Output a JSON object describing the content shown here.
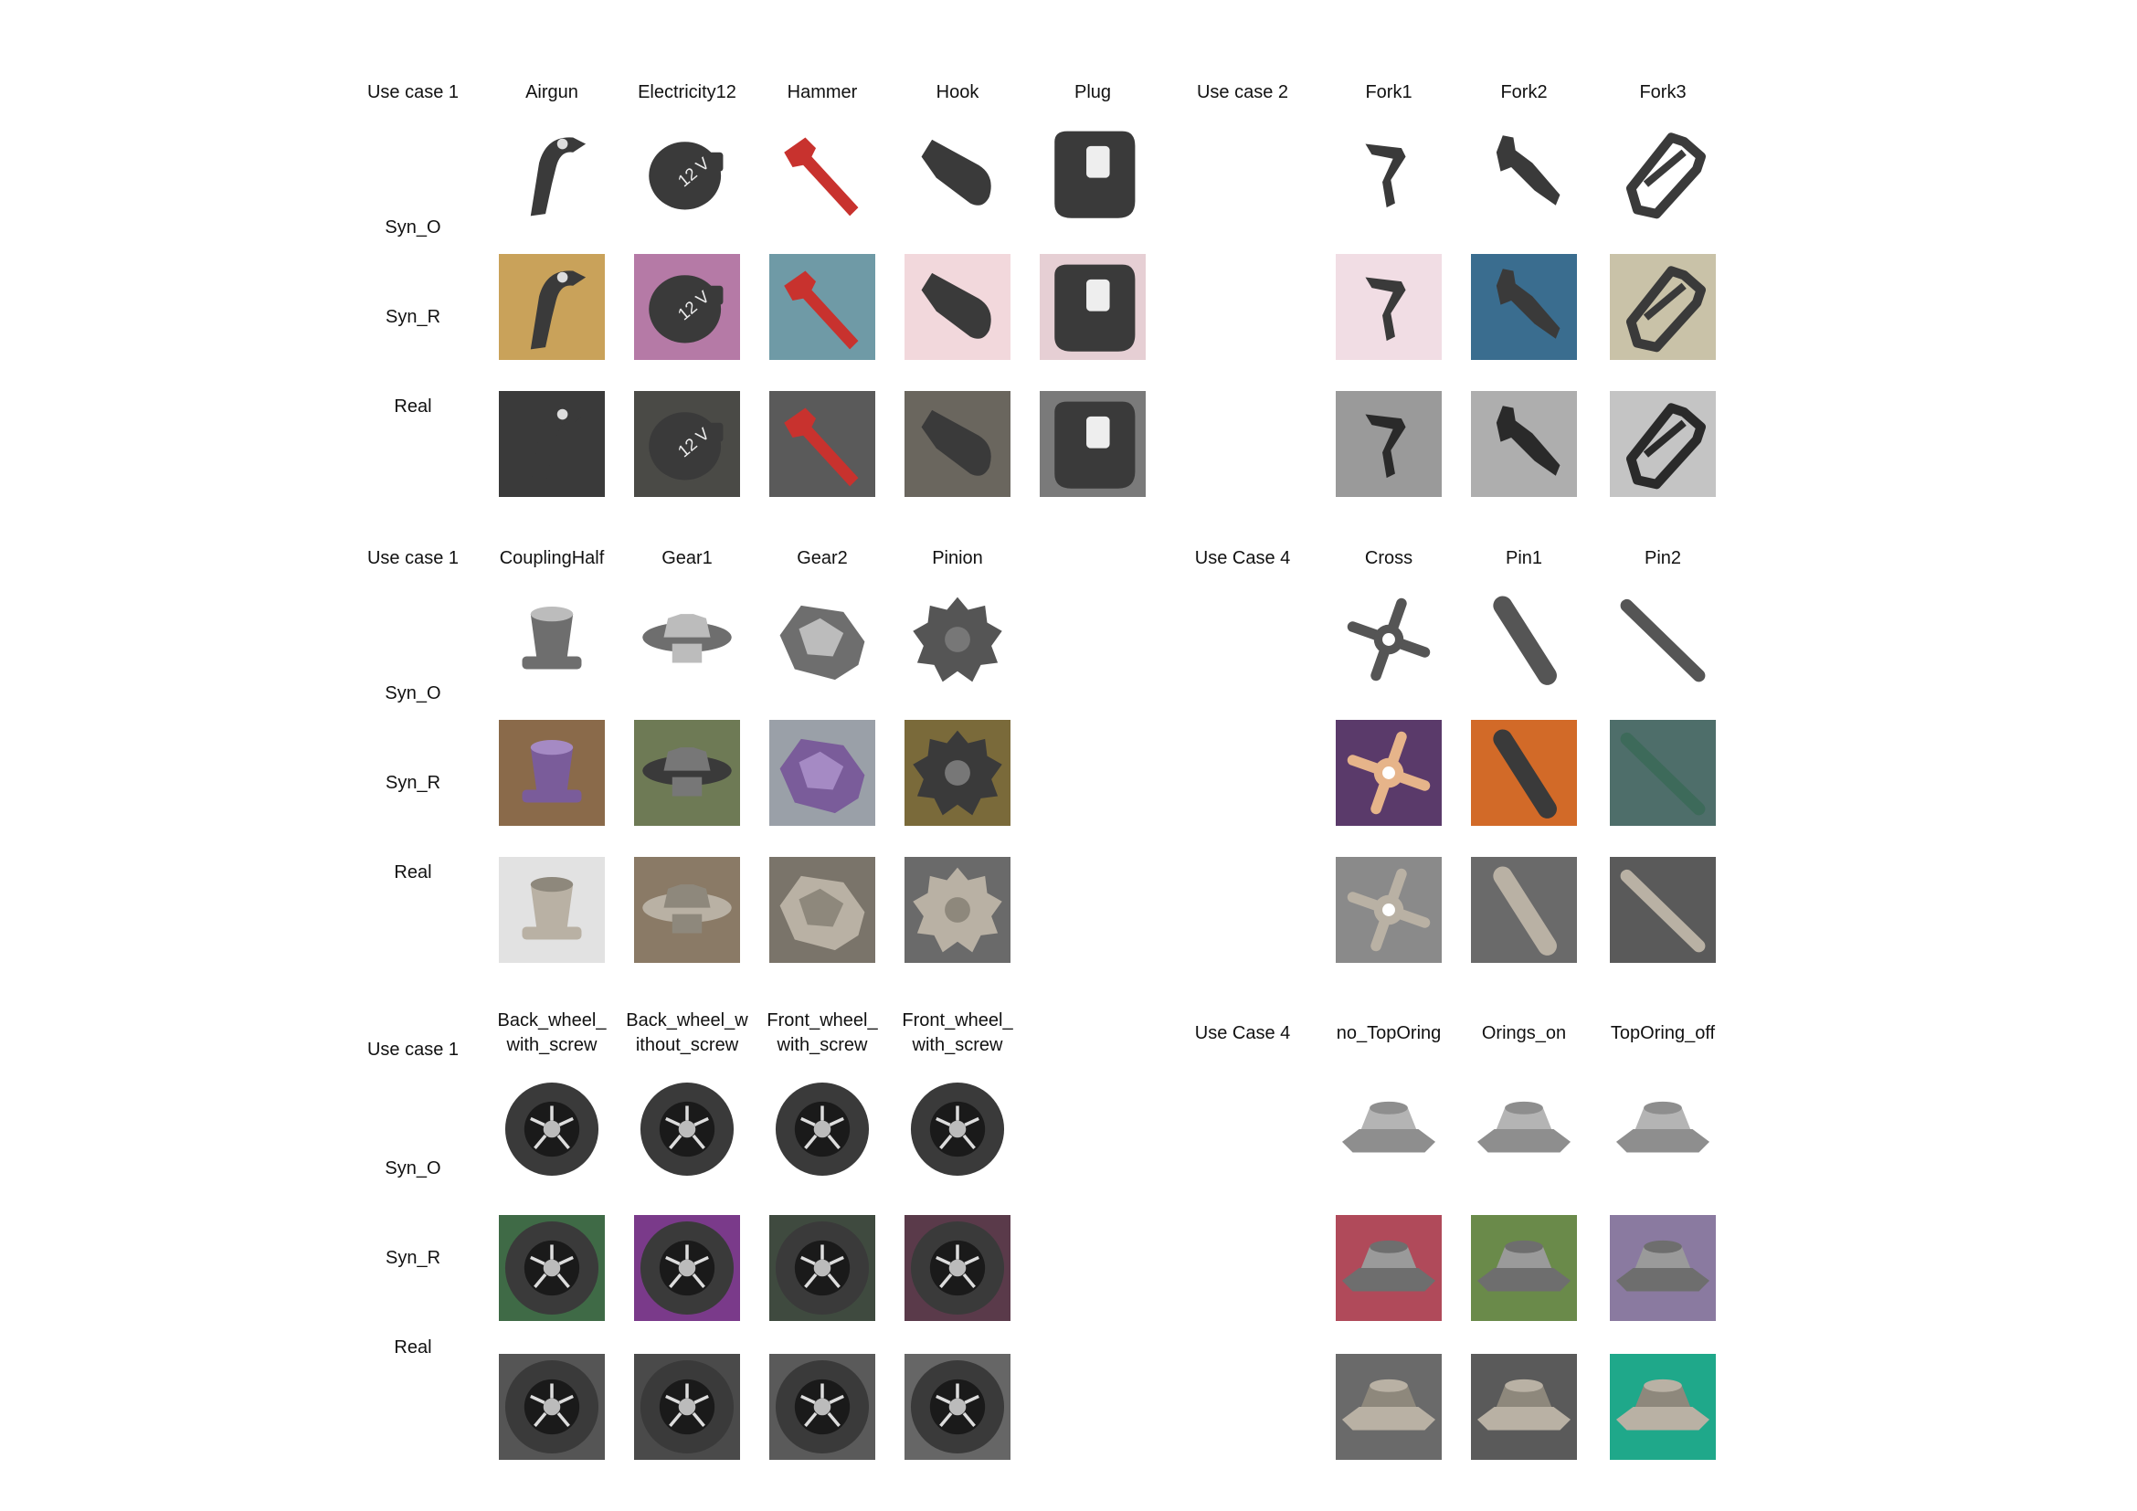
{
  "figure": {
    "panels": [
      {
        "case_label": "Use case 1",
        "objects": [
          {
            "label": "Airgun",
            "shape": "airgun"
          },
          {
            "label": "Electricity12",
            "shape": "socket",
            "glyph": "12 V"
          },
          {
            "label": "Hammer",
            "shape": "hammer"
          },
          {
            "label": "Hook",
            "shape": "hook"
          },
          {
            "label": "Plug",
            "shape": "plug"
          }
        ],
        "rows": [
          "Syn_O",
          "Syn_R",
          "Real"
        ]
      },
      {
        "case_label": "Use case 2",
        "objects": [
          {
            "label": "Fork1",
            "shape": "fork1"
          },
          {
            "label": "Fork2",
            "shape": "fork2"
          },
          {
            "label": "Fork3",
            "shape": "fork3"
          }
        ],
        "rows": []
      },
      {
        "case_label": "Use case 1",
        "objects": [
          {
            "label": "CouplingHalf",
            "shape": "coupling"
          },
          {
            "label": "Gear1",
            "shape": "gear1"
          },
          {
            "label": "Gear2",
            "shape": "gear2"
          },
          {
            "label": "Pinion",
            "shape": "pinion"
          }
        ],
        "rows": [
          "Syn_O",
          "Syn_R",
          "Real"
        ]
      },
      {
        "case_label": "Use Case 4",
        "objects": [
          {
            "label": "Cross",
            "shape": "cross"
          },
          {
            "label": "Pin1",
            "shape": "pin1"
          },
          {
            "label": "Pin2",
            "shape": "pin2"
          }
        ],
        "rows": []
      },
      {
        "case_label": "Use case 1",
        "objects": [
          {
            "label": "Back_wheel_\nwith_screw",
            "shape": "wheel"
          },
          {
            "label": "Back_wheel_w\nithout_screw",
            "shape": "wheel"
          },
          {
            "label": "Front_wheel_\nwith_screw",
            "shape": "wheel"
          },
          {
            "label": "Front_wheel_\nwith_screw",
            "shape": "wheel"
          }
        ],
        "rows": [
          "Syn_O",
          "Syn_R",
          "Real"
        ]
      },
      {
        "case_label": "Use Case 4",
        "objects": [
          {
            "label": "no_TopOring",
            "shape": "housing"
          },
          {
            "label": "Orings_on",
            "shape": "housing"
          },
          {
            "label": "TopOring_off",
            "shape": "housing"
          }
        ],
        "rows": []
      }
    ],
    "backgrounds": {
      "syn_r": [
        "#c9a25a",
        "#b57aa6",
        "#6f9aa6",
        "#f2d8dc",
        "#e6cfd4",
        "#f1dde4",
        "#3a6d8f",
        "#c9c2a8",
        "#8a6a4a",
        "#6e7a55",
        "#9aa0a8",
        "#7a6a3a",
        "#5a3a6a",
        "#d26a28",
        "#4e6e6a",
        "#3f6a46",
        "#7a3a8a",
        "#3f4a3f",
        "#5a3a4a",
        "#b04a5a",
        "#6a8a4a",
        "#8a7aa0"
      ],
      "real": [
        "#3a3a3a",
        "#4a4a46",
        "#5a5a5a",
        "#6a665e",
        "#7a7a7a",
        "#9a9a9a",
        "#aeaeae",
        "#c4c4c4",
        "#e2e2e2",
        "#8a7a66",
        "#7a746a",
        "#6a6a6a",
        "#8a8a8a",
        "#6a6a6a",
        "#5a5a5a",
        "#555555",
        "#4a4a4a",
        "#5a5a5a",
        "#666666",
        "#6a6a6a",
        "#5a5a5a",
        "#1fa88a"
      ]
    }
  }
}
